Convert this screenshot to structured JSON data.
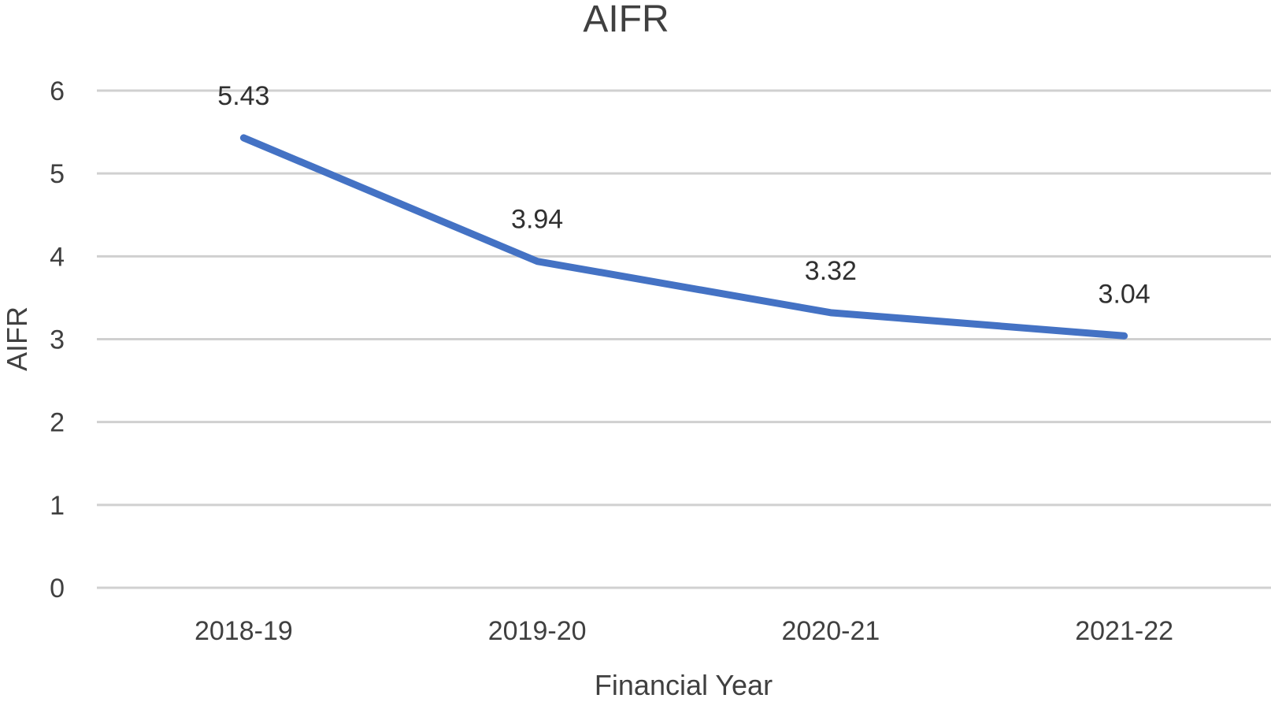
{
  "chart_data": {
    "type": "line",
    "title": "AIFR",
    "xlabel": "Financial Year",
    "ylabel": "AIFR",
    "categories": [
      "2018-19",
      "2019-20",
      "2020-21",
      "2021-22"
    ],
    "series": [
      {
        "values": [
          5.43,
          3.94,
          3.32,
          3.04
        ],
        "color": "#4472C4"
      }
    ],
    "data_labels": [
      "5.43",
      "3.94",
      "3.32",
      "3.04"
    ],
    "ylim": [
      0,
      6
    ],
    "yticks": [
      "0",
      "1",
      "2",
      "3",
      "4",
      "5",
      "6"
    ],
    "grid": true,
    "legend": "none"
  }
}
